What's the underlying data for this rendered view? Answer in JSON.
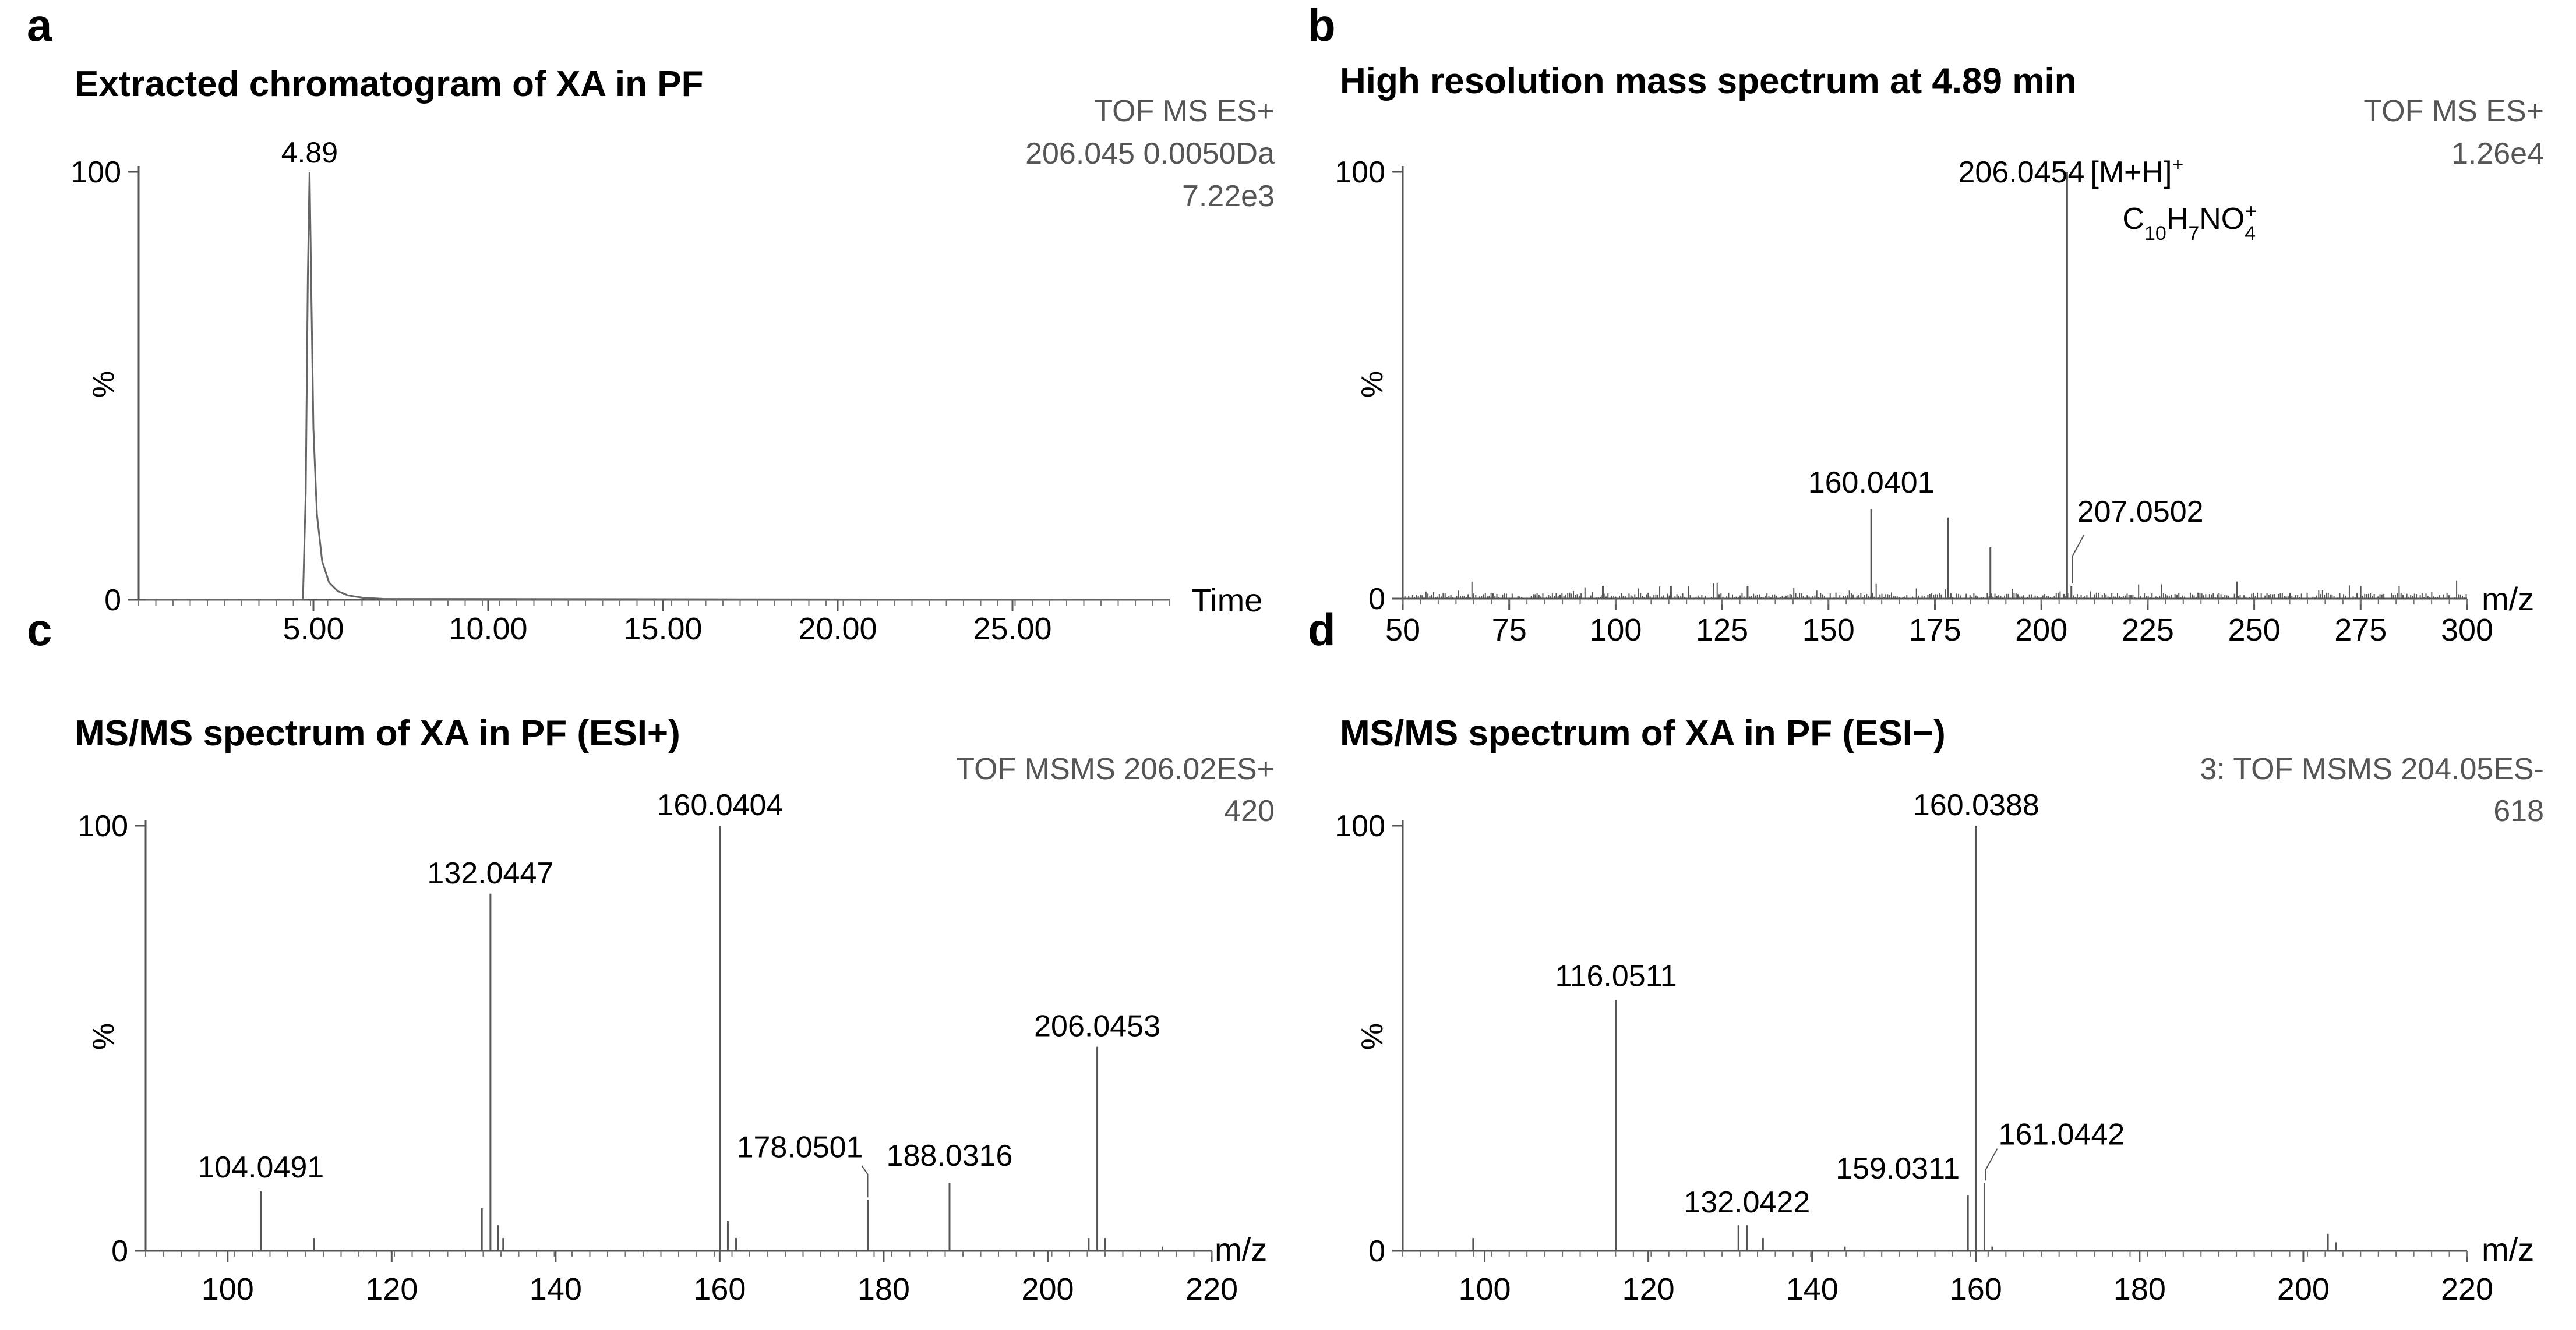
{
  "chart_data": [
    {
      "panel": "a",
      "type": "line",
      "title": "Extracted chromatogram of XA in PF",
      "info": [
        "TOF MS ES+",
        "206.045 0.0050Da",
        "7.22e3"
      ],
      "xlabel": "Time",
      "ylabel": "%",
      "xlim": [
        0,
        29.5
      ],
      "ylim": [
        0,
        100
      ],
      "xticks": [
        5,
        10,
        15,
        20,
        25
      ],
      "xtick_labels": [
        "5.00",
        "10.00",
        "15.00",
        "20.00",
        "25.00"
      ],
      "yticks": [
        0,
        100
      ],
      "ytick_labels": [
        "0",
        "100"
      ],
      "ylabel_pos": 50,
      "x": [
        0.2,
        4.7,
        4.78,
        4.84,
        4.89,
        4.94,
        5.0,
        5.1,
        5.25,
        5.45,
        5.7,
        6.0,
        6.4,
        7.0,
        29.5
      ],
      "y": [
        0,
        0,
        25,
        75,
        100,
        72,
        40,
        20,
        9,
        4,
        2,
        1,
        0.5,
        0.2,
        0
      ],
      "annotations": [
        {
          "x": 4.89,
          "y": 100,
          "text": "4.89"
        }
      ]
    },
    {
      "panel": "b",
      "type": "stick",
      "title": "High resolution mass spectrum at 4.89 min",
      "info": [
        "TOF MS ES+",
        "1.26e4"
      ],
      "xlabel": "m/z",
      "ylabel": "%",
      "xlim": [
        50,
        300
      ],
      "ylim": [
        0,
        100
      ],
      "xticks": [
        50,
        75,
        100,
        125,
        150,
        175,
        200,
        225,
        250,
        275,
        300
      ],
      "xtick_labels": [
        "50",
        "75",
        "100",
        "125",
        "150",
        "175",
        "200",
        "225",
        "250",
        "275",
        "300"
      ],
      "yticks": [
        0,
        100
      ],
      "ytick_labels": [
        "0",
        "100"
      ],
      "ylabel_pos": 50,
      "peaks": [
        {
          "mz": 160.0401,
          "i": 21
        },
        {
          "mz": 178.05,
          "i": 19
        },
        {
          "mz": 188.03,
          "i": 12
        },
        {
          "mz": 206.0454,
          "i": 100
        },
        {
          "mz": 207.0502,
          "i": 3
        },
        {
          "mz": 131.0,
          "i": 3
        },
        {
          "mz": 246.0,
          "i": 4
        },
        {
          "mz": 97.0,
          "i": 3
        },
        {
          "mz": 113.0,
          "i": 3
        }
      ],
      "noise": true,
      "annotations": [
        {
          "mz": 160.0401,
          "i": 21,
          "text": "160.0401"
        },
        {
          "mz": 206.0454,
          "i": 100,
          "text": "206.0454"
        },
        {
          "mz": 207.0502,
          "i": 3,
          "text": "207.0502"
        }
      ],
      "ion_label": "[M+H]",
      "ion_label_sup": "+",
      "formula": {
        "c": "C",
        "c_n": "10",
        "h": "H",
        "h_n": "7",
        "rest": "NO",
        "o_n": "4",
        "charge": "+"
      }
    },
    {
      "panel": "c",
      "type": "stick",
      "title": "MS/MS spectrum of XA in PF (ESI+)",
      "info": [
        "TOF MSMS 206.02ES+",
        "420"
      ],
      "xlabel": "m/z",
      "ylabel": "%",
      "xlim": [
        90,
        220
      ],
      "ylim": [
        0,
        100
      ],
      "xticks": [
        100,
        120,
        140,
        160,
        180,
        200,
        220
      ],
      "xtick_labels": [
        "100",
        "120",
        "140",
        "160",
        "180",
        "200",
        "220"
      ],
      "yticks": [
        0,
        100
      ],
      "ytick_labels": [
        "0",
        "100"
      ],
      "ylabel_pos": 50,
      "peaks": [
        {
          "mz": 104.0491,
          "i": 14
        },
        {
          "mz": 110.5,
          "i": 3
        },
        {
          "mz": 131.0,
          "i": 10
        },
        {
          "mz": 132.0447,
          "i": 84
        },
        {
          "mz": 133.0,
          "i": 6
        },
        {
          "mz": 133.6,
          "i": 3
        },
        {
          "mz": 160.0404,
          "i": 100
        },
        {
          "mz": 161.0,
          "i": 7
        },
        {
          "mz": 162.0,
          "i": 3
        },
        {
          "mz": 178.0501,
          "i": 12
        },
        {
          "mz": 188.0316,
          "i": 16
        },
        {
          "mz": 205.0,
          "i": 3
        },
        {
          "mz": 206.0453,
          "i": 48
        },
        {
          "mz": 207.0,
          "i": 3
        },
        {
          "mz": 214.0,
          "i": 1
        }
      ],
      "noise": false,
      "annotations": [
        {
          "mz": 104.0491,
          "i": 14,
          "text": "104.0491"
        },
        {
          "mz": 132.0447,
          "i": 84,
          "text": "132.0447"
        },
        {
          "mz": 160.0404,
          "i": 100,
          "text": "160.0404"
        },
        {
          "mz": 178.0501,
          "i": 12,
          "text": "178.0501"
        },
        {
          "mz": 188.0316,
          "i": 16,
          "text": "188.0316"
        },
        {
          "mz": 206.0453,
          "i": 48,
          "text": "206.0453"
        }
      ]
    },
    {
      "panel": "d",
      "type": "stick",
      "title": "MS/MS spectrum of XA in PF (ESI−)",
      "info": [
        "3: TOF MSMS 204.05ES-",
        "618"
      ],
      "xlabel": "m/z",
      "ylabel": "%",
      "xlim": [
        90,
        220
      ],
      "ylim": [
        0,
        100
      ],
      "xticks": [
        100,
        120,
        140,
        160,
        180,
        200,
        220
      ],
      "xtick_labels": [
        "100",
        "120",
        "140",
        "160",
        "180",
        "200",
        "220"
      ],
      "yticks": [
        0,
        100
      ],
      "ytick_labels": [
        "0",
        "100"
      ],
      "ylabel_pos": 50,
      "peaks": [
        {
          "mz": 98.6,
          "i": 3
        },
        {
          "mz": 116.0511,
          "i": 59
        },
        {
          "mz": 131.0,
          "i": 6
        },
        {
          "mz": 132.0422,
          "i": 6
        },
        {
          "mz": 134.0,
          "i": 3
        },
        {
          "mz": 144.0,
          "i": 1
        },
        {
          "mz": 159.0311,
          "i": 13
        },
        {
          "mz": 160.0388,
          "i": 100
        },
        {
          "mz": 161.0442,
          "i": 16
        },
        {
          "mz": 162.0,
          "i": 1
        },
        {
          "mz": 203.0,
          "i": 4
        },
        {
          "mz": 204.0,
          "i": 2
        }
      ],
      "noise": false,
      "annotations": [
        {
          "mz": 116.0511,
          "i": 59,
          "text": "116.0511"
        },
        {
          "mz": 132.0422,
          "i": 6,
          "text": "132.0422"
        },
        {
          "mz": 159.0311,
          "i": 13,
          "text": "159.0311"
        },
        {
          "mz": 160.0388,
          "i": 100,
          "text": "160.0388"
        },
        {
          "mz": 161.0442,
          "i": 16,
          "text": "161.0442"
        }
      ]
    }
  ]
}
